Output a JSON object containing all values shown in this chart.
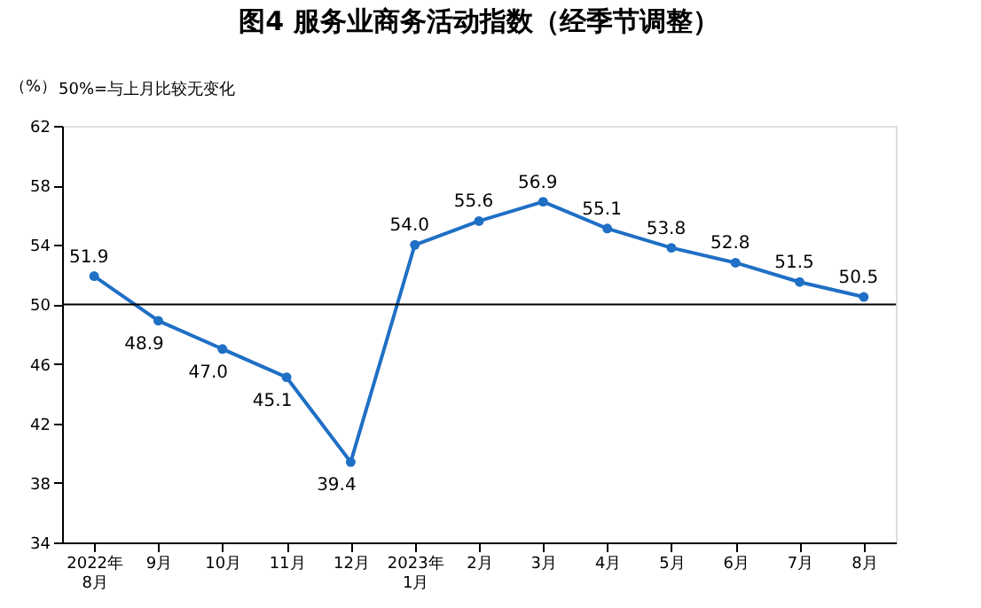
{
  "chart_data": {
    "type": "line",
    "title": "图4  服务业商务活动指数（经季节调整）",
    "ylabel": "（%）",
    "annotations": [
      "50%=与上月比较无变化"
    ],
    "categories": [
      "2022年\n8月",
      "9月",
      "10月",
      "11月",
      "12月",
      "2023年\n1月",
      "2月",
      "3月",
      "4月",
      "5月",
      "6月",
      "7月",
      "8月"
    ],
    "series": [
      {
        "color": "#1f6fc5",
        "values": [
          51.9,
          48.9,
          47.0,
          45.1,
          39.4,
          54.0,
          55.6,
          56.9,
          55.1,
          53.8,
          52.8,
          51.5,
          50.5
        ]
      }
    ],
    "ylim": [
      34,
      62
    ],
    "yticks": [
      34,
      38,
      42,
      46,
      50,
      54,
      58,
      62
    ],
    "ref_lines": [
      {
        "axis": "y",
        "value": 50,
        "color": "#000000"
      }
    ],
    "value_labels": [
      "51.9",
      "48.9",
      "47.0",
      "45.1",
      "39.4",
      "54.0",
      "55.6",
      "56.9",
      "55.1",
      "53.8",
      "52.8",
      "51.5",
      "50.5"
    ],
    "marker": "circle"
  }
}
